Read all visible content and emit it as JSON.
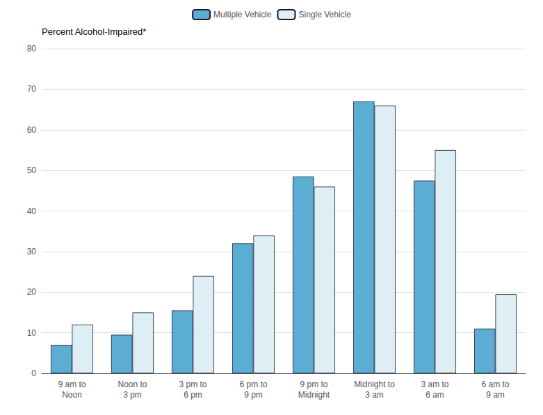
{
  "chart_data": {
    "type": "bar",
    "ylabel": "Percent Alcohol-Impaired*",
    "categories": [
      "9 am to\nNoon",
      "Noon to\n3 pm",
      "3 pm to\n6 pm",
      "6 pm to\n9 pm",
      "9 pm to\nMidnight",
      "Midnight to\n3 am",
      "3 am to\n6 am",
      "6 am to\n9 am"
    ],
    "series": [
      {
        "name": "Multiple Vehicle",
        "color": "#5badd4",
        "values": [
          7,
          9.5,
          15.5,
          32,
          48.5,
          67,
          47.5,
          11
        ]
      },
      {
        "name": "Single Vehicle",
        "color": "#ddeef5",
        "values": [
          12,
          15,
          24,
          34,
          46,
          66,
          55,
          19.5
        ]
      }
    ],
    "ylim": [
      0,
      80
    ],
    "yticks": [
      0,
      10,
      20,
      30,
      40,
      50,
      60,
      70,
      80
    ],
    "grid": true,
    "legend": "upper center"
  }
}
